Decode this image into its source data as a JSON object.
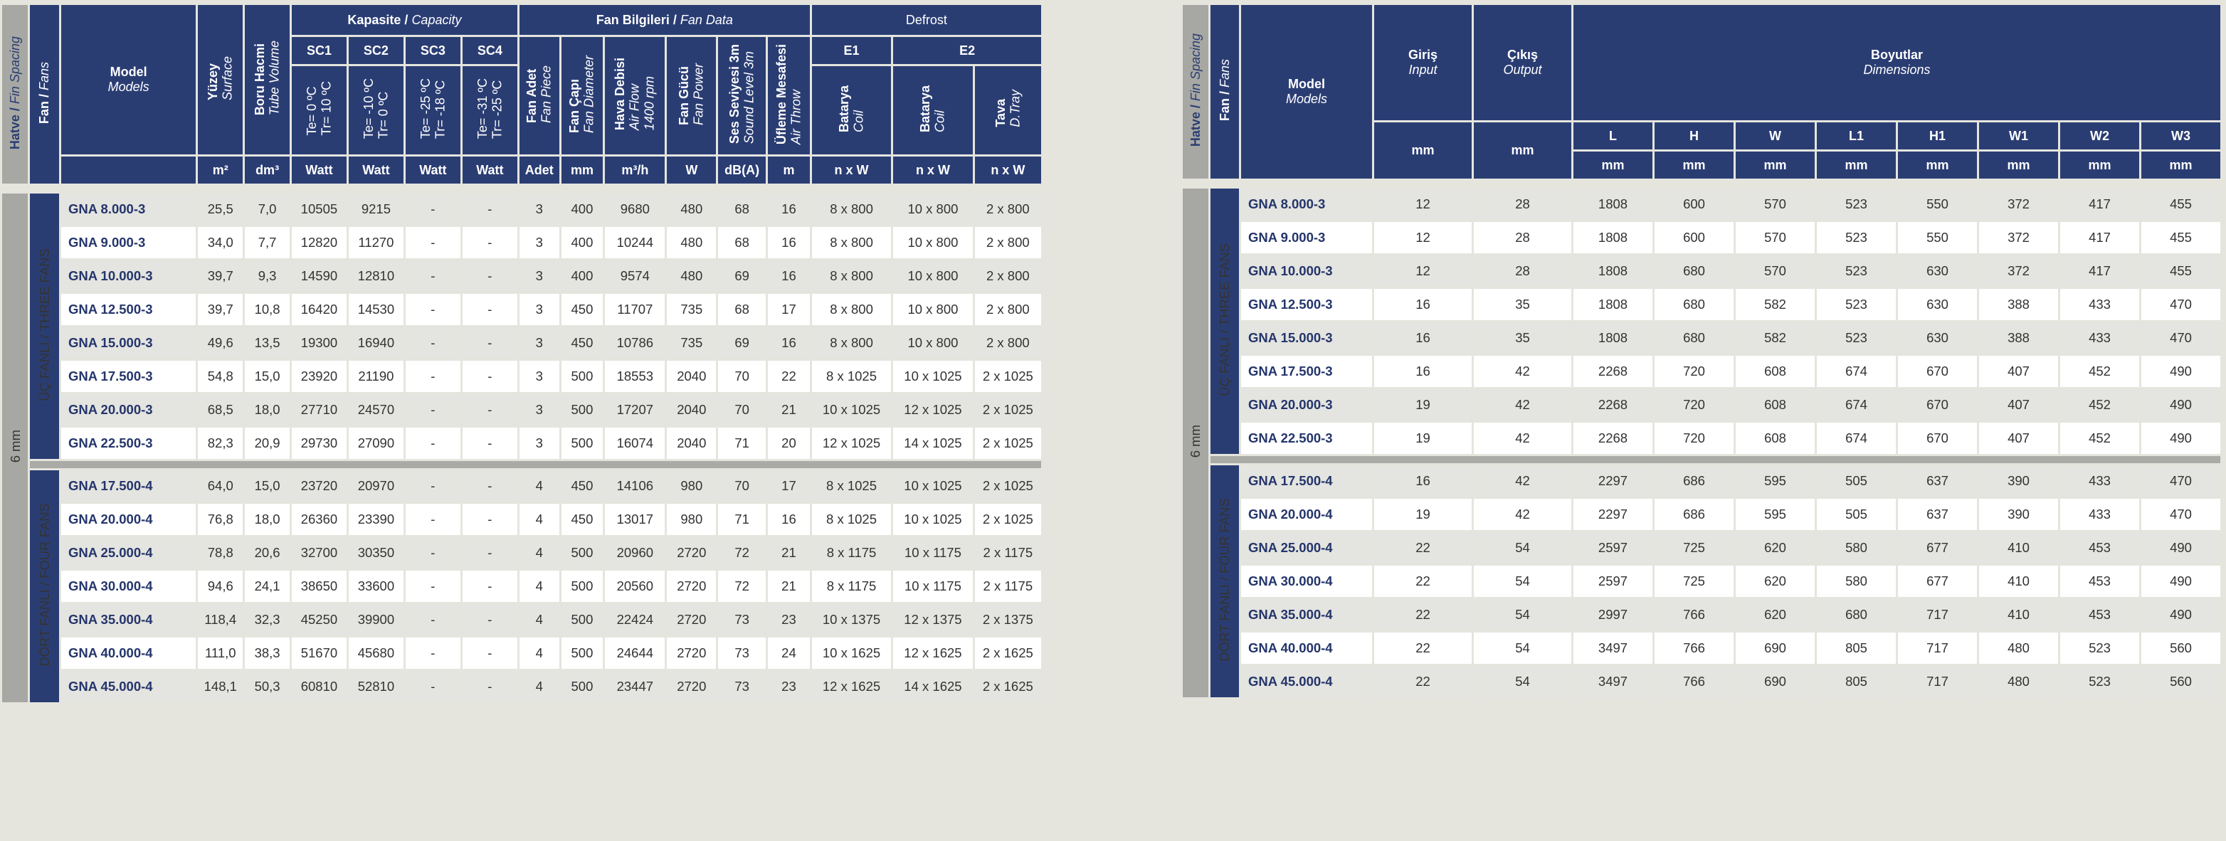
{
  "left": {
    "hatve": "Hatve",
    "hatve_en": "Fin Spacing",
    "fan": "Fan",
    "fan_en": "Fans",
    "model": "Model",
    "model_en": "Models",
    "yuzey": "Yüzey",
    "yuzey_en": "Surface",
    "boru": "Boru Hacmi",
    "boru_en": "Tube Volume",
    "kapasite": "Kapasite",
    "kapasite_en": "Capacity",
    "fan_bilgileri": "Fan Bilgileri",
    "fan_bilgileri_en": "Fan Data",
    "defrost": "Defrost",
    "sc": [
      "SC1",
      "SC2",
      "SC3",
      "SC4"
    ],
    "sc_temps": [
      [
        "Te= 0 ºC",
        "Tr= 10 ºC"
      ],
      [
        "Te= -10 ºC",
        "Tr= 0 ºC"
      ],
      [
        "Te= -25 ºC",
        "Tr= -18 ºC"
      ],
      [
        "Te= -31 ºC",
        "Tr= -25 ºC"
      ]
    ],
    "fan_cols": [
      [
        "Fan Adet",
        "Fan Piece"
      ],
      [
        "Fan Çapı",
        "Fan Diameter"
      ],
      [
        "Hava Debisi",
        "Air Flow",
        "1400 rpm"
      ],
      [
        "Fan Gücü",
        "Fan Power"
      ],
      [
        "Ses Seviyesi 3m",
        "Sound Level 3m"
      ],
      [
        "Üfleme Mesafesi",
        "Air Throw"
      ]
    ],
    "e1": "E1",
    "e2": "E2",
    "batarya": "Batarya",
    "coil": "Coil",
    "tava": "Tava",
    "dtray": "D.Tray",
    "units": [
      "m²",
      "dm³",
      "Watt",
      "Watt",
      "Watt",
      "Watt",
      "Adet",
      "mm",
      "m³/h",
      "W",
      "dB(A)",
      "m",
      "n x W",
      "n x W",
      "n x W"
    ],
    "fin": "6 mm",
    "group3": "ÜÇ FANLI",
    "group3_en": "THREE FANS",
    "group4": "DÖRT FANLI",
    "group4_en": "FOUR FANS",
    "rows3": [
      [
        "GNA 8.000-3",
        "25,5",
        "7,0",
        "10505",
        "9215",
        "-",
        "-",
        "3",
        "400",
        "9680",
        "480",
        "68",
        "16",
        "8 x 800",
        "10 x 800",
        "2 x 800"
      ],
      [
        "GNA 9.000-3",
        "34,0",
        "7,7",
        "12820",
        "11270",
        "-",
        "-",
        "3",
        "400",
        "10244",
        "480",
        "68",
        "16",
        "8 x 800",
        "10 x 800",
        "2 x 800"
      ],
      [
        "GNA 10.000-3",
        "39,7",
        "9,3",
        "14590",
        "12810",
        "-",
        "-",
        "3",
        "400",
        "9574",
        "480",
        "69",
        "16",
        "8 x 800",
        "10 x 800",
        "2 x 800"
      ],
      [
        "GNA 12.500-3",
        "39,7",
        "10,8",
        "16420",
        "14530",
        "-",
        "-",
        "3",
        "450",
        "11707",
        "735",
        "68",
        "17",
        "8 x 800",
        "10 x 800",
        "2 x 800"
      ],
      [
        "GNA 15.000-3",
        "49,6",
        "13,5",
        "19300",
        "16940",
        "-",
        "-",
        "3",
        "450",
        "10786",
        "735",
        "69",
        "16",
        "8 x 800",
        "10 x 800",
        "2 x 800"
      ],
      [
        "GNA 17.500-3",
        "54,8",
        "15,0",
        "23920",
        "21190",
        "-",
        "-",
        "3",
        "500",
        "18553",
        "2040",
        "70",
        "22",
        "8 x 1025",
        "10 x 1025",
        "2 x 1025"
      ],
      [
        "GNA 20.000-3",
        "68,5",
        "18,0",
        "27710",
        "24570",
        "-",
        "-",
        "3",
        "500",
        "17207",
        "2040",
        "70",
        "21",
        "10 x 1025",
        "12 x 1025",
        "2 x 1025"
      ],
      [
        "GNA 22.500-3",
        "82,3",
        "20,9",
        "29730",
        "27090",
        "-",
        "-",
        "3",
        "500",
        "16074",
        "2040",
        "71",
        "20",
        "12 x 1025",
        "14 x 1025",
        "2 x 1025"
      ]
    ],
    "rows4": [
      [
        "GNA 17.500-4",
        "64,0",
        "15,0",
        "23720",
        "20970",
        "-",
        "-",
        "4",
        "450",
        "14106",
        "980",
        "70",
        "17",
        "8 x 1025",
        "10 x 1025",
        "2 x 1025"
      ],
      [
        "GNA 20.000-4",
        "76,8",
        "18,0",
        "26360",
        "23390",
        "-",
        "-",
        "4",
        "450",
        "13017",
        "980",
        "71",
        "16",
        "8 x 1025",
        "10 x 1025",
        "2 x 1025"
      ],
      [
        "GNA 25.000-4",
        "78,8",
        "20,6",
        "32700",
        "30350",
        "-",
        "-",
        "4",
        "500",
        "20960",
        "2720",
        "72",
        "21",
        "8 x 1175",
        "10 x 1175",
        "2 x 1175"
      ],
      [
        "GNA 30.000-4",
        "94,6",
        "24,1",
        "38650",
        "33600",
        "-",
        "-",
        "4",
        "500",
        "20560",
        "2720",
        "72",
        "21",
        "8 x 1175",
        "10 x 1175",
        "2 x 1175"
      ],
      [
        "GNA 35.000-4",
        "118,4",
        "32,3",
        "45250",
        "39900",
        "-",
        "-",
        "4",
        "500",
        "22424",
        "2720",
        "73",
        "23",
        "10 x 1375",
        "12 x 1375",
        "2 x 1375"
      ],
      [
        "GNA 40.000-4",
        "111,0",
        "38,3",
        "51670",
        "45680",
        "-",
        "-",
        "4",
        "500",
        "24644",
        "2720",
        "73",
        "24",
        "10 x 1625",
        "12 x 1625",
        "2 x 1625"
      ],
      [
        "GNA 45.000-4",
        "148,1",
        "50,3",
        "60810",
        "52810",
        "-",
        "-",
        "4",
        "500",
        "23447",
        "2720",
        "73",
        "23",
        "12 x 1625",
        "14 x 1625",
        "2 x 1625"
      ]
    ]
  },
  "right": {
    "hatve": "Hatve",
    "hatve_en": "Fin Spacing",
    "fan": "Fan",
    "fan_en": "Fans",
    "model": "Model",
    "model_en": "Models",
    "giris": "Giriş",
    "giris_en": "Input",
    "cikis": "Çıkış",
    "cikis_en": "Output",
    "boyutlar": "Boyutlar",
    "boyutlar_en": "Dimensions",
    "dim_letters": [
      "L",
      "H",
      "W",
      "L1",
      "H1",
      "W1",
      "W2",
      "W3"
    ],
    "mm": "mm",
    "fin": "6 mm",
    "group3": "ÜÇ FANLI",
    "group3_en": "THREE FANS",
    "group4": "DÖRT FANLI",
    "group4_en": "FOUR FANS",
    "rows3": [
      [
        "GNA 8.000-3",
        "12",
        "28",
        "1808",
        "600",
        "570",
        "523",
        "550",
        "372",
        "417",
        "455"
      ],
      [
        "GNA 9.000-3",
        "12",
        "28",
        "1808",
        "600",
        "570",
        "523",
        "550",
        "372",
        "417",
        "455"
      ],
      [
        "GNA 10.000-3",
        "12",
        "28",
        "1808",
        "680",
        "570",
        "523",
        "630",
        "372",
        "417",
        "455"
      ],
      [
        "GNA 12.500-3",
        "16",
        "35",
        "1808",
        "680",
        "582",
        "523",
        "630",
        "388",
        "433",
        "470"
      ],
      [
        "GNA 15.000-3",
        "16",
        "35",
        "1808",
        "680",
        "582",
        "523",
        "630",
        "388",
        "433",
        "470"
      ],
      [
        "GNA 17.500-3",
        "16",
        "42",
        "2268",
        "720",
        "608",
        "674",
        "670",
        "407",
        "452",
        "490"
      ],
      [
        "GNA 20.000-3",
        "19",
        "42",
        "2268",
        "720",
        "608",
        "674",
        "670",
        "407",
        "452",
        "490"
      ],
      [
        "GNA 22.500-3",
        "19",
        "42",
        "2268",
        "720",
        "608",
        "674",
        "670",
        "407",
        "452",
        "490"
      ]
    ],
    "rows4": [
      [
        "GNA 17.500-4",
        "16",
        "42",
        "2297",
        "686",
        "595",
        "505",
        "637",
        "390",
        "433",
        "470"
      ],
      [
        "GNA 20.000-4",
        "19",
        "42",
        "2297",
        "686",
        "595",
        "505",
        "637",
        "390",
        "433",
        "470"
      ],
      [
        "GNA 25.000-4",
        "22",
        "54",
        "2597",
        "725",
        "620",
        "580",
        "677",
        "410",
        "453",
        "490"
      ],
      [
        "GNA 30.000-4",
        "22",
        "54",
        "2597",
        "725",
        "620",
        "580",
        "677",
        "410",
        "453",
        "490"
      ],
      [
        "GNA 35.000-4",
        "22",
        "54",
        "2997",
        "766",
        "620",
        "680",
        "717",
        "410",
        "453",
        "490"
      ],
      [
        "GNA 40.000-4",
        "22",
        "54",
        "3497",
        "766",
        "690",
        "805",
        "717",
        "480",
        "523",
        "560"
      ],
      [
        "GNA 45.000-4",
        "22",
        "54",
        "3497",
        "766",
        "690",
        "805",
        "717",
        "480",
        "523",
        "560"
      ]
    ]
  }
}
